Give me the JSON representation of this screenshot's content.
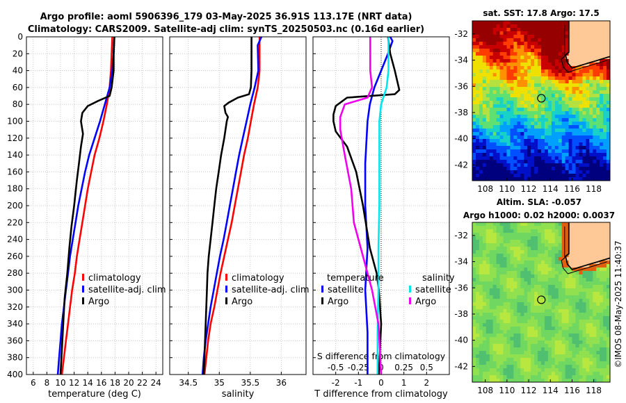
{
  "header": {
    "title_line1": "Argo profile: aoml 5906396_179 03-May-2025 36.91S 113.17E (NRT data)",
    "title_line2": "Climatology: CARS2009. Satellite-adj clim: synTS_20250503.nc (0.16d earlier)"
  },
  "side": {
    "sst_title": "sat. SST: 17.8 Argo: 17.5",
    "sla_title1": "Altim. SLA: -0.057",
    "sla_title2": "Argo h1000: 0.02 h2000: 0.0037",
    "credit": "©IMOS 08-May-2025 11:40:37"
  },
  "colors": {
    "climatology": "#ff0000",
    "satellite": "#0000ff",
    "argo": "#000000",
    "salinity_sat": "#00e5ee",
    "salinity_argo": "#ee00ee",
    "land": "#ffc896"
  },
  "depth_ticks": [
    0,
    20,
    40,
    60,
    80,
    100,
    120,
    140,
    160,
    180,
    200,
    220,
    240,
    260,
    280,
    300,
    320,
    340,
    360,
    380,
    400
  ],
  "chart_data": [
    {
      "type": "line",
      "id": "temperature",
      "xlabel": "temperature (deg C)",
      "ylabel": "depth",
      "xlim": [
        5,
        25
      ],
      "ylim": [
        400,
        0
      ],
      "xticks": [
        6,
        8,
        10,
        12,
        14,
        16,
        18,
        20,
        22,
        24
      ],
      "legend": [
        "climatology",
        "satellite-adj. clim",
        "Argo"
      ],
      "series": [
        {
          "name": "climatology",
          "color": "#ff0000",
          "points": [
            [
              17.6,
              0
            ],
            [
              17.5,
              20
            ],
            [
              17.4,
              40
            ],
            [
              17.2,
              60
            ],
            [
              16.8,
              80
            ],
            [
              16.3,
              100
            ],
            [
              15.7,
              120
            ],
            [
              15.0,
              140
            ],
            [
              14.5,
              160
            ],
            [
              14.0,
              180
            ],
            [
              13.6,
              200
            ],
            [
              13.2,
              220
            ],
            [
              12.8,
              240
            ],
            [
              12.4,
              260
            ],
            [
              12.1,
              280
            ],
            [
              11.7,
              300
            ],
            [
              11.4,
              320
            ],
            [
              11.1,
              340
            ],
            [
              10.8,
              360
            ],
            [
              10.5,
              380
            ],
            [
              10.2,
              400
            ]
          ]
        },
        {
          "name": "satellite-adj. clim",
          "color": "#0000ff",
          "points": [
            [
              17.9,
              0
            ],
            [
              17.8,
              20
            ],
            [
              17.6,
              40
            ],
            [
              17.2,
              60
            ],
            [
              16.5,
              80
            ],
            [
              15.8,
              100
            ],
            [
              15.0,
              120
            ],
            [
              14.2,
              140
            ],
            [
              13.6,
              160
            ],
            [
              13.1,
              180
            ],
            [
              12.6,
              200
            ],
            [
              12.2,
              220
            ],
            [
              11.8,
              240
            ],
            [
              11.4,
              260
            ],
            [
              11.1,
              280
            ],
            [
              10.8,
              300
            ],
            [
              10.5,
              320
            ],
            [
              10.2,
              340
            ],
            [
              10.0,
              360
            ],
            [
              9.8,
              380
            ],
            [
              9.6,
              400
            ]
          ]
        },
        {
          "name": "Argo",
          "color": "#000000",
          "points": [
            [
              17.9,
              0
            ],
            [
              17.8,
              20
            ],
            [
              17.8,
              40
            ],
            [
              17.5,
              60
            ],
            [
              17.2,
              70
            ],
            [
              15.5,
              76
            ],
            [
              14.0,
              82
            ],
            [
              13.2,
              90
            ],
            [
              13.0,
              100
            ],
            [
              13.3,
              115
            ],
            [
              13.0,
              130
            ],
            [
              12.7,
              150
            ],
            [
              12.4,
              170
            ],
            [
              12.0,
              200
            ],
            [
              11.6,
              225
            ],
            [
              11.3,
              250
            ],
            [
              11.0,
              280
            ],
            [
              10.6,
              310
            ],
            [
              10.4,
              340
            ],
            [
              10.2,
              370
            ],
            [
              10.0,
              400
            ]
          ]
        }
      ]
    },
    {
      "type": "line",
      "id": "salinity",
      "xlabel": "salinity",
      "ylabel": "depth",
      "xlim": [
        34.2,
        36.4
      ],
      "ylim": [
        400,
        0
      ],
      "xticks": [
        34.5,
        35,
        35.5,
        36
      ],
      "xtick_labels": [
        "34.5",
        "35",
        "35.5",
        "36"
      ],
      "legend": [
        "climatology",
        "satellite-adj. clim",
        "Argo"
      ],
      "series": [
        {
          "name": "climatology",
          "color": "#ff0000",
          "points": [
            [
              35.65,
              0
            ],
            [
              35.65,
              20
            ],
            [
              35.65,
              40
            ],
            [
              35.62,
              60
            ],
            [
              35.56,
              80
            ],
            [
              35.51,
              100
            ],
            [
              35.46,
              120
            ],
            [
              35.4,
              140
            ],
            [
              35.35,
              160
            ],
            [
              35.3,
              180
            ],
            [
              35.25,
              200
            ],
            [
              35.2,
              220
            ],
            [
              35.14,
              240
            ],
            [
              35.08,
              260
            ],
            [
              35.02,
              280
            ],
            [
              34.97,
              300
            ],
            [
              34.92,
              320
            ],
            [
              34.86,
              340
            ],
            [
              34.82,
              360
            ],
            [
              34.79,
              380
            ],
            [
              34.76,
              400
            ]
          ]
        },
        {
          "name": "satellite-adj. clim",
          "color": "#0000ff",
          "points": [
            [
              35.68,
              0
            ],
            [
              35.62,
              10
            ],
            [
              35.63,
              40
            ],
            [
              35.57,
              60
            ],
            [
              35.5,
              80
            ],
            [
              35.44,
              100
            ],
            [
              35.38,
              120
            ],
            [
              35.32,
              140
            ],
            [
              35.27,
              160
            ],
            [
              35.22,
              180
            ],
            [
              35.17,
              200
            ],
            [
              35.12,
              220
            ],
            [
              35.07,
              240
            ],
            [
              35.01,
              260
            ],
            [
              34.96,
              280
            ],
            [
              34.91,
              300
            ],
            [
              34.86,
              320
            ],
            [
              34.82,
              340
            ],
            [
              34.78,
              360
            ],
            [
              34.75,
              380
            ],
            [
              34.73,
              400
            ]
          ]
        },
        {
          "name": "Argo",
          "color": "#000000",
          "points": [
            [
              35.52,
              0
            ],
            [
              35.52,
              20
            ],
            [
              35.52,
              40
            ],
            [
              35.51,
              60
            ],
            [
              35.48,
              68
            ],
            [
              35.3,
              72
            ],
            [
              35.15,
              78
            ],
            [
              35.08,
              82
            ],
            [
              35.1,
              90
            ],
            [
              35.14,
              95
            ],
            [
              35.12,
              100
            ],
            [
              35.1,
              110
            ],
            [
              35.08,
              120
            ],
            [
              35.03,
              140
            ],
            [
              34.99,
              160
            ],
            [
              34.95,
              180
            ],
            [
              34.92,
              200
            ],
            [
              34.89,
              220
            ],
            [
              34.86,
              240
            ],
            [
              34.83,
              260
            ],
            [
              34.81,
              280
            ],
            [
              34.8,
              300
            ],
            [
              34.79,
              320
            ],
            [
              34.78,
              340
            ],
            [
              34.77,
              360
            ],
            [
              34.76,
              380
            ],
            [
              34.75,
              400
            ]
          ]
        }
      ]
    },
    {
      "type": "line",
      "id": "differences",
      "xlabel": "T difference from climatology",
      "xlabel_top": "S difference from climatology",
      "ylabel": "depth",
      "xlim": [
        -3,
        3
      ],
      "ylim": [
        400,
        0
      ],
      "xticks": [
        -2,
        -1,
        0,
        1,
        2
      ],
      "xtick_labels": [
        "-2",
        "-1",
        "0",
        "1",
        "2"
      ],
      "s_ticks": [
        -0.5,
        -0.25,
        0,
        0.25,
        0.5
      ],
      "s_tick_labels": [
        "-0.5",
        "-0.25",
        "0",
        "0.25",
        "0.5"
      ],
      "s_scale": 4,
      "legend_temperature_title": "temperature",
      "legend_salinity_title": "salinity",
      "legend_temperature": [
        "satellite",
        "Argo"
      ],
      "legend_salinity": [
        "satellite",
        "Argo"
      ],
      "series": [
        {
          "name": "T satellite",
          "color": "#0000ff",
          "points": [
            [
              0.4,
              0
            ],
            [
              0.5,
              5
            ],
            [
              0.3,
              20
            ],
            [
              0.0,
              40
            ],
            [
              -0.3,
              60
            ],
            [
              -0.5,
              80
            ],
            [
              -0.6,
              100
            ],
            [
              -0.7,
              150
            ],
            [
              -0.7,
              200
            ],
            [
              -0.6,
              250
            ],
            [
              -0.7,
              300
            ],
            [
              -0.6,
              350
            ],
            [
              -0.6,
              400
            ]
          ]
        },
        {
          "name": "T Argo",
          "color": "#000000",
          "points": [
            [
              0.3,
              0
            ],
            [
              0.4,
              20
            ],
            [
              0.6,
              40
            ],
            [
              0.8,
              63
            ],
            [
              0.6,
              68
            ],
            [
              -1.5,
              72
            ],
            [
              -2.0,
              82
            ],
            [
              -2.1,
              92
            ],
            [
              -2.1,
              100
            ],
            [
              -2.0,
              112
            ],
            [
              -1.5,
              130
            ],
            [
              -1.1,
              160
            ],
            [
              -0.8,
              200
            ],
            [
              -0.5,
              250
            ],
            [
              -0.2,
              280
            ],
            [
              -0.1,
              300
            ],
            [
              0.0,
              340
            ],
            [
              -0.1,
              400
            ]
          ]
        },
        {
          "name": "S satellite",
          "color": "#00e5ee",
          "points": [
            [
              0.08,
              0
            ],
            [
              0.08,
              40
            ],
            [
              0.06,
              60
            ],
            [
              0.0,
              80
            ],
            [
              -0.02,
              100
            ],
            [
              -0.02,
              150
            ],
            [
              -0.02,
              200
            ],
            [
              -0.03,
              250
            ],
            [
              -0.03,
              300
            ],
            [
              -0.04,
              350
            ],
            [
              -0.04,
              400
            ]
          ]
        },
        {
          "name": "S Argo",
          "color": "#ee00ee",
          "points": [
            [
              -0.12,
              0
            ],
            [
              -0.12,
              40
            ],
            [
              -0.1,
              60
            ],
            [
              -0.15,
              72
            ],
            [
              -0.4,
              80
            ],
            [
              -0.45,
              95
            ],
            [
              -0.45,
              110
            ],
            [
              -0.4,
              140
            ],
            [
              -0.33,
              180
            ],
            [
              -0.3,
              220
            ],
            [
              -0.2,
              260
            ],
            [
              -0.1,
              300
            ],
            [
              -0.03,
              340
            ],
            [
              0.0,
              400
            ]
          ]
        }
      ]
    }
  ],
  "maps": [
    {
      "id": "sst-map",
      "lon_ticks": [
        108,
        110,
        112,
        114,
        116,
        118
      ],
      "lat_ticks": [
        -32,
        -34,
        -36,
        -38,
        -40,
        -42
      ],
      "lon_range": [
        106.8,
        119.5
      ],
      "lat_range": [
        -43.2,
        -31.0
      ],
      "argo_lon": 113.17,
      "argo_lat": -36.91
    },
    {
      "id": "sla-map",
      "lon_ticks": [
        108,
        110,
        112,
        114,
        116,
        118
      ],
      "lat_ticks": [
        -32,
        -34,
        -36,
        -38,
        -40,
        -42
      ],
      "lon_range": [
        106.8,
        119.5
      ],
      "lat_range": [
        -43.2,
        -31.0
      ],
      "argo_lon": 113.17,
      "argo_lat": -36.91
    }
  ]
}
